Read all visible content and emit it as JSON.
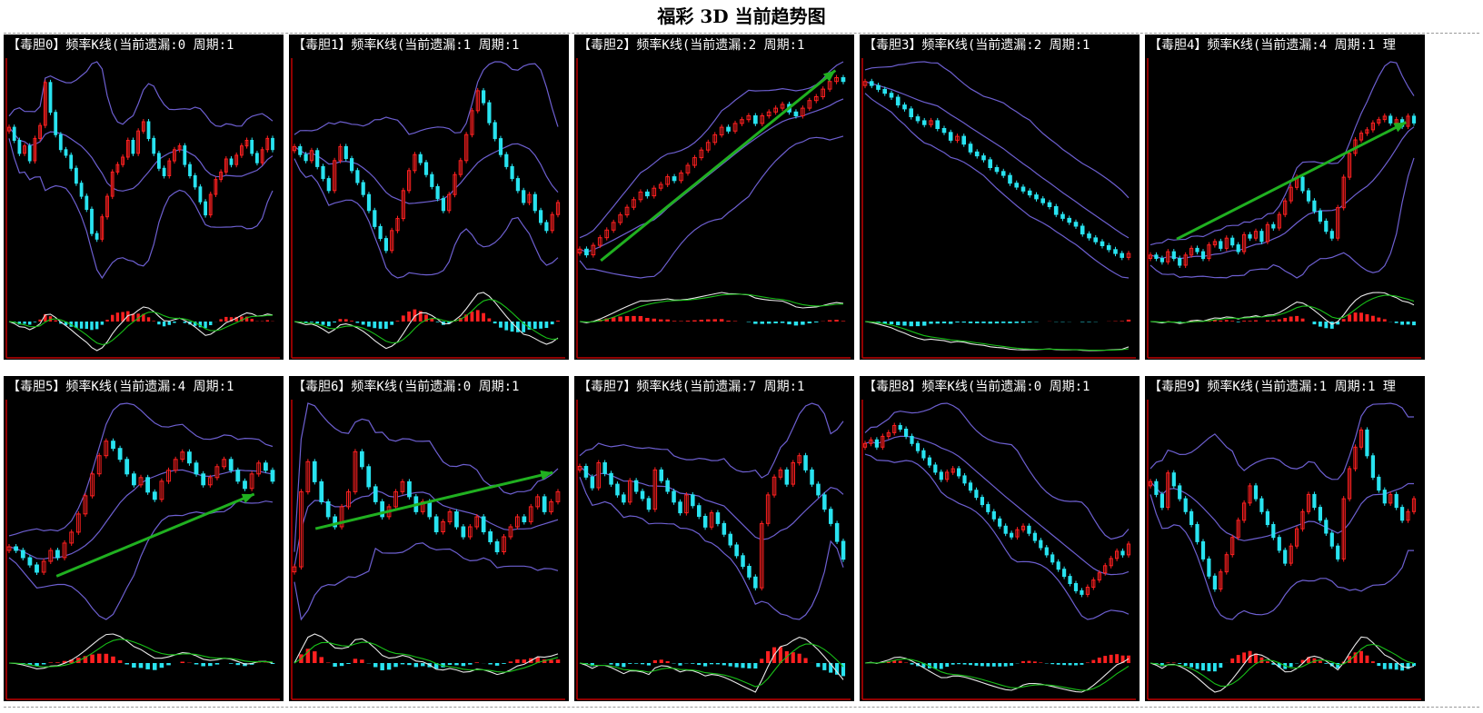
{
  "page": {
    "title": "福彩 3D 当前趋势图"
  },
  "colors": {
    "up": "#ff2020",
    "down": "#29e3f0",
    "band": "#6d5fd0",
    "macd_dif": "#e8e8e8",
    "macd_dea": "#18c018",
    "trend": "#20b020",
    "frame": "#c00000"
  },
  "chart_data": [
    {
      "type": "candlestick",
      "title": "【毒胆0】频率K线(当前遗漏:0 周期:1",
      "closes": [
        62,
        55,
        48,
        52,
        44,
        56,
        63,
        86,
        70,
        58,
        50,
        47,
        40,
        32,
        25,
        18,
        5,
        2,
        14,
        25,
        38,
        42,
        46,
        55,
        48,
        60,
        65,
        56,
        48,
        40,
        36,
        44,
        50,
        52,
        42,
        36,
        30,
        22,
        15,
        26,
        34,
        38,
        45,
        42,
        47,
        52,
        55,
        48,
        43,
        50,
        56,
        50
      ],
      "trend": null
    },
    {
      "type": "candlestick",
      "title": "【毒胆1】频率K线(当前遗漏:1 周期:1",
      "closes": [
        62,
        58,
        55,
        60,
        52,
        46,
        40,
        55,
        62,
        56,
        50,
        44,
        38,
        30,
        22,
        16,
        10,
        20,
        26,
        40,
        50,
        58,
        54,
        48,
        42,
        36,
        30,
        38,
        48,
        55,
        68,
        80,
        90,
        84,
        74,
        66,
        58,
        52,
        46,
        40,
        34,
        38,
        30,
        24,
        20,
        28,
        34
      ],
      "trend": null
    },
    {
      "type": "candlestick",
      "title": "【毒胆2】频率K线(当前遗漏:2 周期:1",
      "closes": [
        8,
        5,
        10,
        14,
        18,
        22,
        26,
        30,
        34,
        38,
        36,
        40,
        42,
        46,
        44,
        48,
        52,
        56,
        60,
        64,
        68,
        72,
        70,
        74,
        76,
        78,
        74,
        78,
        80,
        82,
        84,
        80,
        78,
        82,
        86,
        88,
        92,
        96,
        98,
        96
      ],
      "trend": {
        "from": [
          8,
          8
        ],
        "to": [
          97,
          96
        ]
      }
    },
    {
      "type": "candlestick",
      "title": "【毒胆3】频率K线(当前遗漏:2 周期:1",
      "closes": [
        92,
        90,
        88,
        86,
        84,
        80,
        78,
        74,
        72,
        70,
        72,
        68,
        66,
        62,
        64,
        60,
        56,
        54,
        52,
        48,
        46,
        44,
        40,
        38,
        36,
        34,
        32,
        30,
        28,
        24,
        22,
        20,
        18,
        14,
        12,
        10,
        8,
        6,
        4,
        2,
        4
      ],
      "trend": null
    },
    {
      "type": "candlestick",
      "title": "【毒胆4】频率K线(当前遗漏:4 周期:1 理",
      "closes": [
        12,
        10,
        8,
        14,
        10,
        6,
        12,
        16,
        14,
        10,
        18,
        20,
        16,
        22,
        18,
        14,
        24,
        22,
        26,
        20,
        30,
        28,
        36,
        44,
        52,
        58,
        50,
        44,
        38,
        32,
        26,
        22,
        40,
        58,
        72,
        80,
        84,
        86,
        90,
        92,
        94,
        90,
        92,
        88,
        94,
        90
      ],
      "trend": {
        "from": [
          10,
          18
        ],
        "to": [
          97,
          72
        ]
      }
    },
    {
      "type": "candlestick",
      "title": "【毒胆5】频率K线(当前遗漏:4 周期:1",
      "closes": [
        22,
        20,
        16,
        12,
        8,
        14,
        20,
        16,
        24,
        30,
        40,
        50,
        62,
        72,
        80,
        76,
        70,
        62,
        56,
        60,
        52,
        48,
        58,
        64,
        70,
        74,
        68,
        62,
        56,
        60,
        66,
        70,
        64,
        58,
        54,
        62,
        68,
        64,
        58
      ],
      "trend": {
        "from": [
          18,
          20
        ],
        "to": [
          93,
          58
        ]
      }
    },
    {
      "type": "candlestick",
      "title": "【毒胆6】频率K线(当前遗漏:0 周期:1",
      "closes": [
        40,
        70,
        82,
        74,
        66,
        60,
        56,
        64,
        70,
        86,
        80,
        72,
        66,
        60,
        64,
        70,
        74,
        68,
        62,
        66,
        60,
        54,
        58,
        62,
        56,
        52,
        56,
        60,
        54,
        50,
        46,
        52,
        56,
        60,
        58,
        64,
        68,
        62,
        66,
        70
      ],
      "trend": {
        "from": [
          8,
          42
        ],
        "to": [
          98,
          68
        ]
      }
    },
    {
      "type": "candlestick",
      "title": "【毒胆7】频率K线(当前遗漏:7 周期:1",
      "closes": [
        72,
        66,
        60,
        74,
        68,
        62,
        56,
        52,
        64,
        58,
        54,
        48,
        70,
        64,
        58,
        52,
        46,
        56,
        50,
        44,
        38,
        46,
        40,
        34,
        28,
        22,
        16,
        10,
        4,
        40,
        56,
        66,
        70,
        62,
        74,
        78,
        70,
        62,
        56,
        48,
        40,
        30,
        20
      ],
      "trend": null
    },
    {
      "type": "candlestick",
      "title": "【毒胆8】频率K线(当前遗漏:0 周期:1",
      "closes": [
        90,
        92,
        88,
        94,
        96,
        100,
        98,
        94,
        90,
        86,
        82,
        78,
        74,
        70,
        74,
        76,
        72,
        68,
        64,
        60,
        56,
        52,
        48,
        44,
        40,
        38,
        42,
        44,
        40,
        36,
        32,
        28,
        24,
        20,
        16,
        12,
        8,
        6,
        10,
        14,
        18,
        22,
        26,
        30,
        28,
        34
      ],
      "trend": null
    },
    {
      "type": "candlestick",
      "title": "【毒胆9】频率K线(当前遗漏:1 周期:1 理",
      "closes": [
        58,
        52,
        46,
        62,
        56,
        50,
        44,
        38,
        30,
        22,
        14,
        8,
        16,
        24,
        32,
        40,
        48,
        56,
        50,
        44,
        38,
        32,
        26,
        20,
        28,
        36,
        44,
        52,
        46,
        40,
        34,
        28,
        22,
        50,
        64,
        74,
        82,
        70,
        60,
        54,
        48,
        52,
        46,
        40,
        44,
        50
      ],
      "trend": null
    }
  ]
}
